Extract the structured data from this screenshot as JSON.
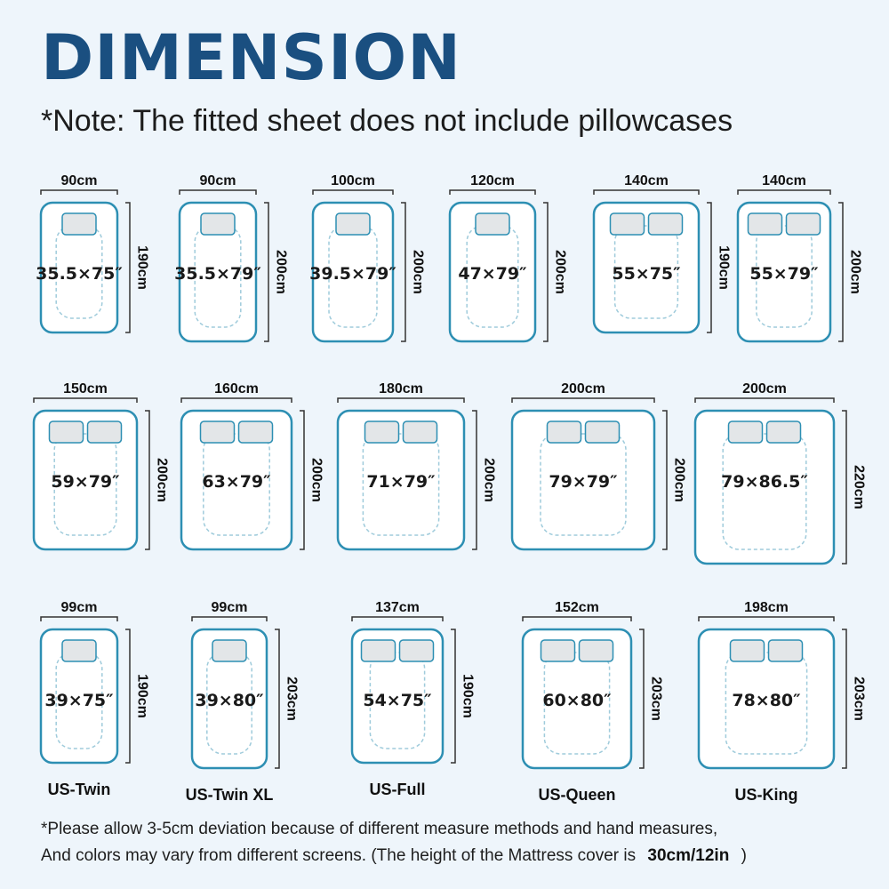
{
  "title": "DIMENSION",
  "note": "*Note: The fitted sheet does not include pillowcases",
  "colors": {
    "title": "#1a4f80",
    "bed_border": "#2d8fb3",
    "pillow_fill": "#e3e6e8",
    "dashed": "#9fcbdb",
    "background": "#eef5fb"
  },
  "beds": [
    {
      "id": "bed-90x190",
      "width_label": "90cm",
      "length_label": "190cm",
      "size_label": "35.5×75″",
      "pillows": 1,
      "name": ""
    },
    {
      "id": "bed-90x200",
      "width_label": "90cm",
      "length_label": "200cm",
      "size_label": "35.5×79″",
      "pillows": 1,
      "name": ""
    },
    {
      "id": "bed-100x200",
      "width_label": "100cm",
      "length_label": "200cm",
      "size_label": "39.5×79″",
      "pillows": 1,
      "name": ""
    },
    {
      "id": "bed-120x200",
      "width_label": "120cm",
      "length_label": "200cm",
      "size_label": "47×79″",
      "pillows": 1,
      "name": ""
    },
    {
      "id": "bed-140x190",
      "width_label": "140cm",
      "length_label": "190cm",
      "size_label": "55×75″",
      "pillows": 2,
      "name": ""
    },
    {
      "id": "bed-140x200",
      "width_label": "140cm",
      "length_label": "200cm",
      "size_label": "55×79″",
      "pillows": 2,
      "name": ""
    },
    {
      "id": "bed-150x200",
      "width_label": "150cm",
      "length_label": "200cm",
      "size_label": "59×79″",
      "pillows": 2,
      "name": ""
    },
    {
      "id": "bed-160x200",
      "width_label": "160cm",
      "length_label": "200cm",
      "size_label": "63×79″",
      "pillows": 2,
      "name": ""
    },
    {
      "id": "bed-180x200",
      "width_label": "180cm",
      "length_label": "200cm",
      "size_label": "71×79″",
      "pillows": 2,
      "name": ""
    },
    {
      "id": "bed-200x200",
      "width_label": "200cm",
      "length_label": "200cm",
      "size_label": "79×79″",
      "pillows": 2,
      "name": ""
    },
    {
      "id": "bed-200x220",
      "width_label": "200cm",
      "length_label": "220cm",
      "size_label": "79×86.5″",
      "pillows": 2,
      "name": ""
    },
    {
      "id": "bed-us-twin",
      "width_label": "99cm",
      "length_label": "190cm",
      "size_label": "39×75″",
      "pillows": 1,
      "name": "US-Twin"
    },
    {
      "id": "bed-us-twin-xl",
      "width_label": "99cm",
      "length_label": "203cm",
      "size_label": "39×80″",
      "pillows": 1,
      "name": "US-Twin XL"
    },
    {
      "id": "bed-us-full",
      "width_label": "137cm",
      "length_label": "190cm",
      "size_label": "54×75″",
      "pillows": 2,
      "name": "US-Full"
    },
    {
      "id": "bed-us-queen",
      "width_label": "152cm",
      "length_label": "203cm",
      "size_label": "60×80″",
      "pillows": 2,
      "name": "US-Queen"
    },
    {
      "id": "bed-us-king",
      "width_label": "198cm",
      "length_label": "203cm",
      "size_label": "78×80″",
      "pillows": 2,
      "name": "US-King"
    }
  ],
  "footer": {
    "line1": "*Please allow 3-5cm deviation because of different measure methods and hand measures,",
    "line2": "And colors may vary from different screens. (The height of the Mattress cover is",
    "height_value": "30cm/12in",
    "close": ")"
  }
}
